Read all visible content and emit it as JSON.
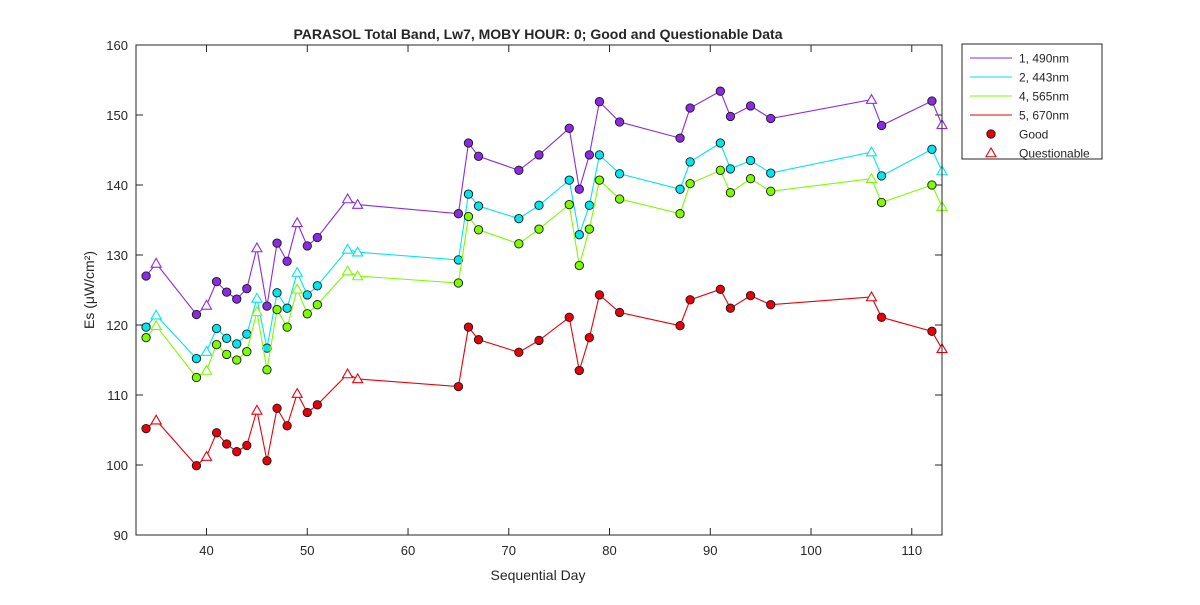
{
  "chart_data": {
    "type": "line",
    "title": "PARASOL Total Band,  Lw7, MOBY HOUR: 0;  Good and Questionable Data",
    "xlabel": "Sequential Day",
    "ylabel": "Es (μW/cm²)",
    "xlim": [
      33,
      113
    ],
    "ylim": [
      90,
      160
    ],
    "xticks": [
      40,
      50,
      60,
      70,
      80,
      90,
      100,
      110
    ],
    "yticks": [
      90,
      100,
      110,
      120,
      130,
      140,
      150,
      160
    ],
    "grid": false,
    "legend_position": "outside-right-top",
    "x": [
      34,
      35,
      39,
      40,
      41,
      42,
      43,
      44,
      45,
      46,
      47,
      48,
      49,
      50,
      51,
      54,
      55,
      65,
      66,
      67,
      71,
      73,
      76,
      77,
      78,
      79,
      81,
      87,
      88,
      91,
      92,
      94,
      96,
      106,
      107,
      112,
      113
    ],
    "quality": [
      "G",
      "Q",
      "G",
      "Q",
      "G",
      "G",
      "G",
      "G",
      "Q",
      "G",
      "G",
      "G",
      "Q",
      "G",
      "G",
      "Q",
      "Q",
      "G",
      "G",
      "G",
      "G",
      "G",
      "G",
      "G",
      "G",
      "G",
      "G",
      "G",
      "G",
      "G",
      "G",
      "G",
      "G",
      "Q",
      "G",
      "G",
      "Q"
    ],
    "series": [
      {
        "name": "1, 490nm",
        "color": "#8a2be2",
        "values": [
          127.0,
          128.8,
          121.5,
          122.8,
          126.2,
          124.7,
          123.7,
          125.2,
          131.0,
          122.7,
          131.7,
          129.1,
          134.6,
          131.3,
          132.5,
          138.0,
          137.2,
          135.9,
          146.0,
          144.1,
          142.1,
          144.3,
          148.1,
          139.4,
          144.3,
          151.9,
          149.0,
          146.7,
          151.0,
          153.4,
          149.8,
          151.3,
          149.5,
          152.2,
          148.5,
          152.0,
          148.6
        ]
      },
      {
        "name": "2, 443nm",
        "color": "#00e5ee",
        "values": [
          119.7,
          121.4,
          115.2,
          116.2,
          119.5,
          118.1,
          117.3,
          118.7,
          123.8,
          116.7,
          124.6,
          122.4,
          127.5,
          124.3,
          125.6,
          130.8,
          130.4,
          129.3,
          138.7,
          137.0,
          135.2,
          137.1,
          140.7,
          132.9,
          137.1,
          144.3,
          141.6,
          139.4,
          143.3,
          146.0,
          142.3,
          143.5,
          141.7,
          144.7,
          141.3,
          145.1,
          142.0
        ]
      },
      {
        "name": "4, 565nm",
        "color": "#7cfc00",
        "values": [
          118.2,
          119.9,
          112.5,
          113.5,
          117.2,
          115.8,
          115.0,
          116.2,
          121.9,
          113.6,
          122.2,
          119.7,
          125.1,
          121.6,
          122.9,
          127.7,
          127.0,
          126.0,
          135.5,
          133.6,
          131.6,
          133.7,
          137.2,
          128.5,
          133.7,
          140.7,
          138.0,
          135.9,
          140.2,
          142.1,
          138.9,
          140.9,
          139.1,
          140.9,
          137.5,
          140.0,
          136.9
        ]
      },
      {
        "name": "5, 670nm",
        "color": "#e8000b",
        "values": [
          105.2,
          106.4,
          99.9,
          101.2,
          104.6,
          103.0,
          101.9,
          102.8,
          107.8,
          100.6,
          108.1,
          105.6,
          110.2,
          107.5,
          108.6,
          113.0,
          112.3,
          111.2,
          119.7,
          117.9,
          116.1,
          117.8,
          121.1,
          113.5,
          118.2,
          124.3,
          121.8,
          119.9,
          123.6,
          125.1,
          122.4,
          124.2,
          122.9,
          124.0,
          121.1,
          119.1,
          116.6
        ]
      }
    ],
    "legend": [
      {
        "label": "1, 490nm",
        "kind": "line",
        "color": "#8a2be2"
      },
      {
        "label": "2, 443nm",
        "kind": "line",
        "color": "#00e5ee"
      },
      {
        "label": "4, 565nm",
        "kind": "line",
        "color": "#7cfc00"
      },
      {
        "label": "5, 670nm",
        "kind": "line",
        "color": "#e8000b"
      },
      {
        "label": "Good",
        "kind": "circle",
        "color": "#e8000b"
      },
      {
        "label": "Questionable",
        "kind": "triangle",
        "color": "#e8000b"
      }
    ]
  }
}
